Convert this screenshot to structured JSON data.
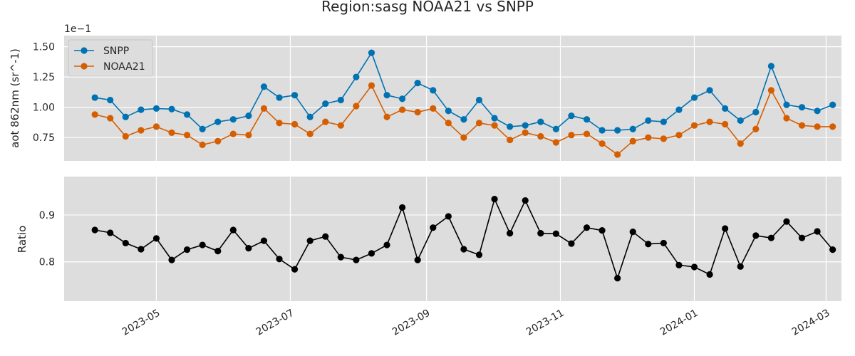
{
  "title": "Region:sasg NOAA21 vs SNPP",
  "chart_data": [
    {
      "type": "line",
      "title": "",
      "xlabel": "",
      "ylabel": "aot 862nm (sr^-1)",
      "y_offset_label": "1e−1",
      "ylim": [
        0.557,
        1.592
      ],
      "yticks": [
        0.75,
        1.0,
        1.25,
        1.5
      ],
      "ytick_labels": [
        "0.75",
        "1.00",
        "1.25",
        "1.50"
      ],
      "grid": true,
      "legend_position": "top-left",
      "series": [
        {
          "name": "SNPP",
          "color": "#0072b2",
          "values": [
            1.08,
            1.06,
            0.92,
            0.98,
            0.99,
            0.985,
            0.94,
            0.82,
            0.88,
            0.9,
            0.93,
            1.17,
            1.08,
            1.1,
            0.92,
            1.03,
            1.06,
            1.25,
            1.45,
            1.1,
            1.07,
            1.2,
            1.14,
            0.97,
            0.9,
            1.06,
            0.91,
            0.84,
            0.85,
            0.88,
            0.82,
            0.93,
            0.9,
            0.81,
            0.81,
            0.82,
            0.89,
            0.88,
            0.98,
            1.08,
            1.14,
            0.99,
            0.89,
            0.96,
            1.34,
            1.02,
            1.0,
            0.97,
            1.02
          ]
        },
        {
          "name": "NOAA21",
          "color": "#d55e00",
          "values": [
            0.94,
            0.91,
            0.76,
            0.81,
            0.84,
            0.79,
            0.77,
            0.69,
            0.72,
            0.78,
            0.77,
            0.99,
            0.87,
            0.86,
            0.78,
            0.88,
            0.85,
            1.01,
            1.18,
            0.92,
            0.98,
            0.96,
            0.99,
            0.87,
            0.75,
            0.87,
            0.85,
            0.73,
            0.79,
            0.76,
            0.71,
            0.77,
            0.78,
            0.7,
            0.61,
            0.72,
            0.75,
            0.74,
            0.77,
            0.85,
            0.88,
            0.86,
            0.7,
            0.82,
            1.14,
            0.91,
            0.85,
            0.84,
            0.84
          ]
        }
      ]
    },
    {
      "type": "line",
      "title": "",
      "xlabel": "",
      "ylabel": "Ratio",
      "ylim": [
        0.716,
        0.982
      ],
      "yticks": [
        0.8,
        0.9
      ],
      "ytick_labels": [
        "0.8",
        "0.9"
      ],
      "grid": true,
      "xticks": [
        "2023-05-01",
        "2023-07-01",
        "2023-09-01",
        "2023-11-01",
        "2024-01-01",
        "2024-03-01"
      ],
      "xtick_labels": [
        "2023-05",
        "2023-07",
        "2023-09",
        "2023-11",
        "2024-01",
        "2024-03"
      ],
      "series": [
        {
          "name": "",
          "color": "#000000",
          "values": [
            0.868,
            0.862,
            0.84,
            0.827,
            0.85,
            0.804,
            0.826,
            0.836,
            0.823,
            0.868,
            0.829,
            0.845,
            0.806,
            0.784,
            0.845,
            0.854,
            0.81,
            0.804,
            0.818,
            0.836,
            0.916,
            0.804,
            0.873,
            0.897,
            0.827,
            0.815,
            0.934,
            0.861,
            0.931,
            0.861,
            0.86,
            0.839,
            0.873,
            0.867,
            0.765,
            0.864,
            0.838,
            0.84,
            0.793,
            0.789,
            0.773,
            0.871,
            0.79,
            0.856,
            0.851,
            0.886,
            0.851,
            0.865,
            0.826
          ]
        }
      ]
    }
  ],
  "x_dates": [
    "2023-04-03",
    "2023-04-10",
    "2023-04-17",
    "2023-04-24",
    "2023-05-01",
    "2023-05-08",
    "2023-05-15",
    "2023-05-22",
    "2023-05-29",
    "2023-06-05",
    "2023-06-12",
    "2023-06-19",
    "2023-06-26",
    "2023-07-03",
    "2023-07-10",
    "2023-07-17",
    "2023-07-24",
    "2023-07-31",
    "2023-08-07",
    "2023-08-14",
    "2023-08-21",
    "2023-08-28",
    "2023-09-04",
    "2023-09-11",
    "2023-09-18",
    "2023-09-25",
    "2023-10-02",
    "2023-10-09",
    "2023-10-16",
    "2023-10-23",
    "2023-10-30",
    "2023-11-06",
    "2023-11-13",
    "2023-11-20",
    "2023-11-27",
    "2023-12-04",
    "2023-12-11",
    "2023-12-18",
    "2023-12-25",
    "2024-01-01",
    "2024-01-08",
    "2024-01-15",
    "2024-01-22",
    "2024-01-29",
    "2024-02-05",
    "2024-02-12",
    "2024-02-19",
    "2024-02-26",
    "2024-03-04"
  ]
}
